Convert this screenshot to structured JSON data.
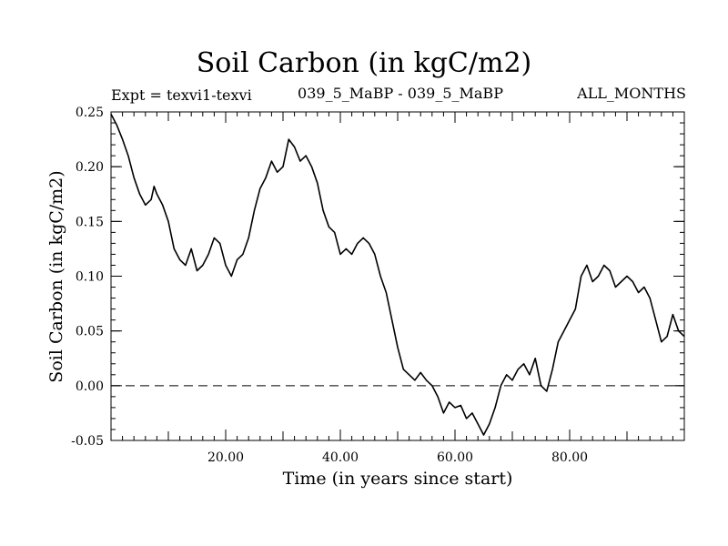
{
  "chart_data": {
    "type": "line",
    "title": "Soil Carbon (in kgC/m2)",
    "subtitle_left": "Expt = texvi1-texvi",
    "subtitle_center": "039_5_MaBP - 039_5_MaBP",
    "subtitle_right": "ALL_MONTHS",
    "xlabel": "Time (in years since start)",
    "ylabel": "Soil Carbon (in kgC/m2)",
    "xlim": [
      0,
      100
    ],
    "ylim": [
      -0.05,
      0.25
    ],
    "xticks": [
      20,
      40,
      60,
      80
    ],
    "xtick_labels": [
      "20.00",
      "40.00",
      "60.00",
      "80.00"
    ],
    "yticks": [
      -0.05,
      0.0,
      0.05,
      0.1,
      0.15,
      0.2,
      0.25
    ],
    "ytick_labels": [
      "-0.05",
      "0.00",
      "0.05",
      "0.10",
      "0.15",
      "0.20",
      "0.25"
    ],
    "reference_line": {
      "y": 0.0,
      "style": "dashed"
    },
    "series": [
      {
        "name": "Soil Carbon",
        "x": [
          0.0,
          1.0,
          2.0,
          3.0,
          4.0,
          5.0,
          6.0,
          7.0,
          7.5,
          8.0,
          9.0,
          10.0,
          11.0,
          12.0,
          13.0,
          14.0,
          15.0,
          16.0,
          17.0,
          18.0,
          19.0,
          20.0,
          21.0,
          22.0,
          23.0,
          24.0,
          25.0,
          26.0,
          27.0,
          28.0,
          29.0,
          30.0,
          31.0,
          32.0,
          33.0,
          34.0,
          35.0,
          36.0,
          37.0,
          38.0,
          39.0,
          40.0,
          41.0,
          42.0,
          43.0,
          44.0,
          45.0,
          46.0,
          47.0,
          48.0,
          49.0,
          50.0,
          51.0,
          52.0,
          53.0,
          54.0,
          55.0,
          56.0,
          57.0,
          58.0,
          59.0,
          60.0,
          61.0,
          62.0,
          63.0,
          64.0,
          65.0,
          66.0,
          67.0,
          68.0,
          69.0,
          70.0,
          71.0,
          72.0,
          73.0,
          74.0,
          75.0,
          76.0,
          77.0,
          78.0,
          79.0,
          80.0,
          81.0,
          82.0,
          83.0,
          84.0,
          85.0,
          86.0,
          87.0,
          88.0,
          89.0,
          90.0,
          91.0,
          92.0,
          93.0,
          94.0,
          95.0,
          96.0,
          97.0,
          98.0,
          99.0,
          100.0
        ],
        "values": [
          0.248,
          0.238,
          0.225,
          0.21,
          0.19,
          0.175,
          0.165,
          0.17,
          0.182,
          0.175,
          0.165,
          0.15,
          0.125,
          0.115,
          0.11,
          0.125,
          0.105,
          0.11,
          0.12,
          0.135,
          0.13,
          0.11,
          0.1,
          0.115,
          0.12,
          0.135,
          0.16,
          0.18,
          0.19,
          0.205,
          0.195,
          0.2,
          0.225,
          0.218,
          0.205,
          0.21,
          0.2,
          0.185,
          0.16,
          0.145,
          0.14,
          0.12,
          0.125,
          0.12,
          0.13,
          0.135,
          0.13,
          0.12,
          0.1,
          0.085,
          0.06,
          0.035,
          0.015,
          0.01,
          0.005,
          0.012,
          0.005,
          0.0,
          -0.01,
          -0.025,
          -0.015,
          -0.02,
          -0.018,
          -0.03,
          -0.025,
          -0.035,
          -0.045,
          -0.035,
          -0.02,
          0.0,
          0.01,
          0.005,
          0.015,
          0.02,
          0.01,
          0.025,
          0.0,
          -0.005,
          0.015,
          0.04,
          0.05,
          0.06,
          0.07,
          0.1,
          0.11,
          0.095,
          0.1,
          0.11,
          0.105,
          0.09,
          0.095,
          0.1,
          0.095,
          0.085,
          0.09,
          0.08,
          0.06,
          0.04,
          0.045,
          0.065,
          0.05,
          0.045
        ]
      }
    ]
  }
}
